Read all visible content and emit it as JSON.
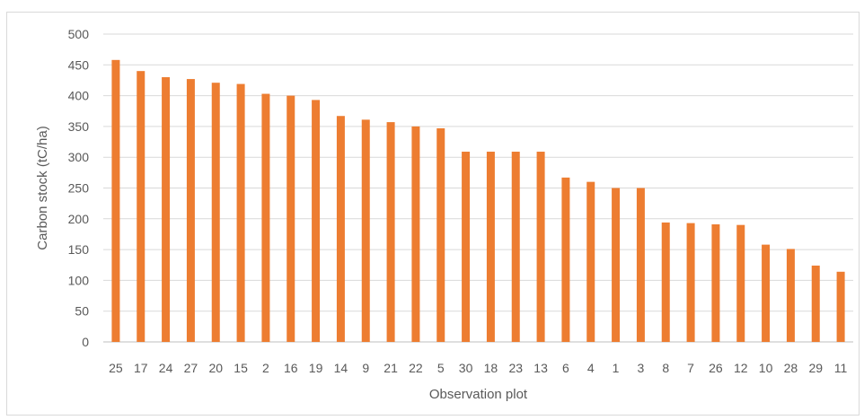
{
  "chart_data": {
    "type": "bar",
    "title": "",
    "xlabel": "Observation plot",
    "ylabel": "Carbon stock  (tC/ha)",
    "ylim": [
      0,
      500
    ],
    "yticks": [
      "0",
      "50",
      "100",
      "150",
      "200",
      "250",
      "300",
      "350",
      "400",
      "450",
      "500"
    ],
    "grid": true,
    "legend": "none",
    "bar_color": "#ED7D31",
    "categories": [
      "25",
      "17",
      "24",
      "27",
      "20",
      "15",
      "2",
      "16",
      "19",
      "14",
      "9",
      "21",
      "22",
      "5",
      "30",
      "18",
      "23",
      "13",
      "6",
      "4",
      "1",
      "3",
      "8",
      "7",
      "26",
      "12",
      "10",
      "28",
      "29",
      "11"
    ],
    "values": [
      458,
      440,
      430,
      427,
      421,
      419,
      403,
      400,
      393,
      367,
      361,
      357,
      350,
      347,
      309,
      309,
      309,
      309,
      267,
      260,
      250,
      250,
      194,
      193,
      191,
      190,
      158,
      151,
      124,
      114
    ]
  }
}
